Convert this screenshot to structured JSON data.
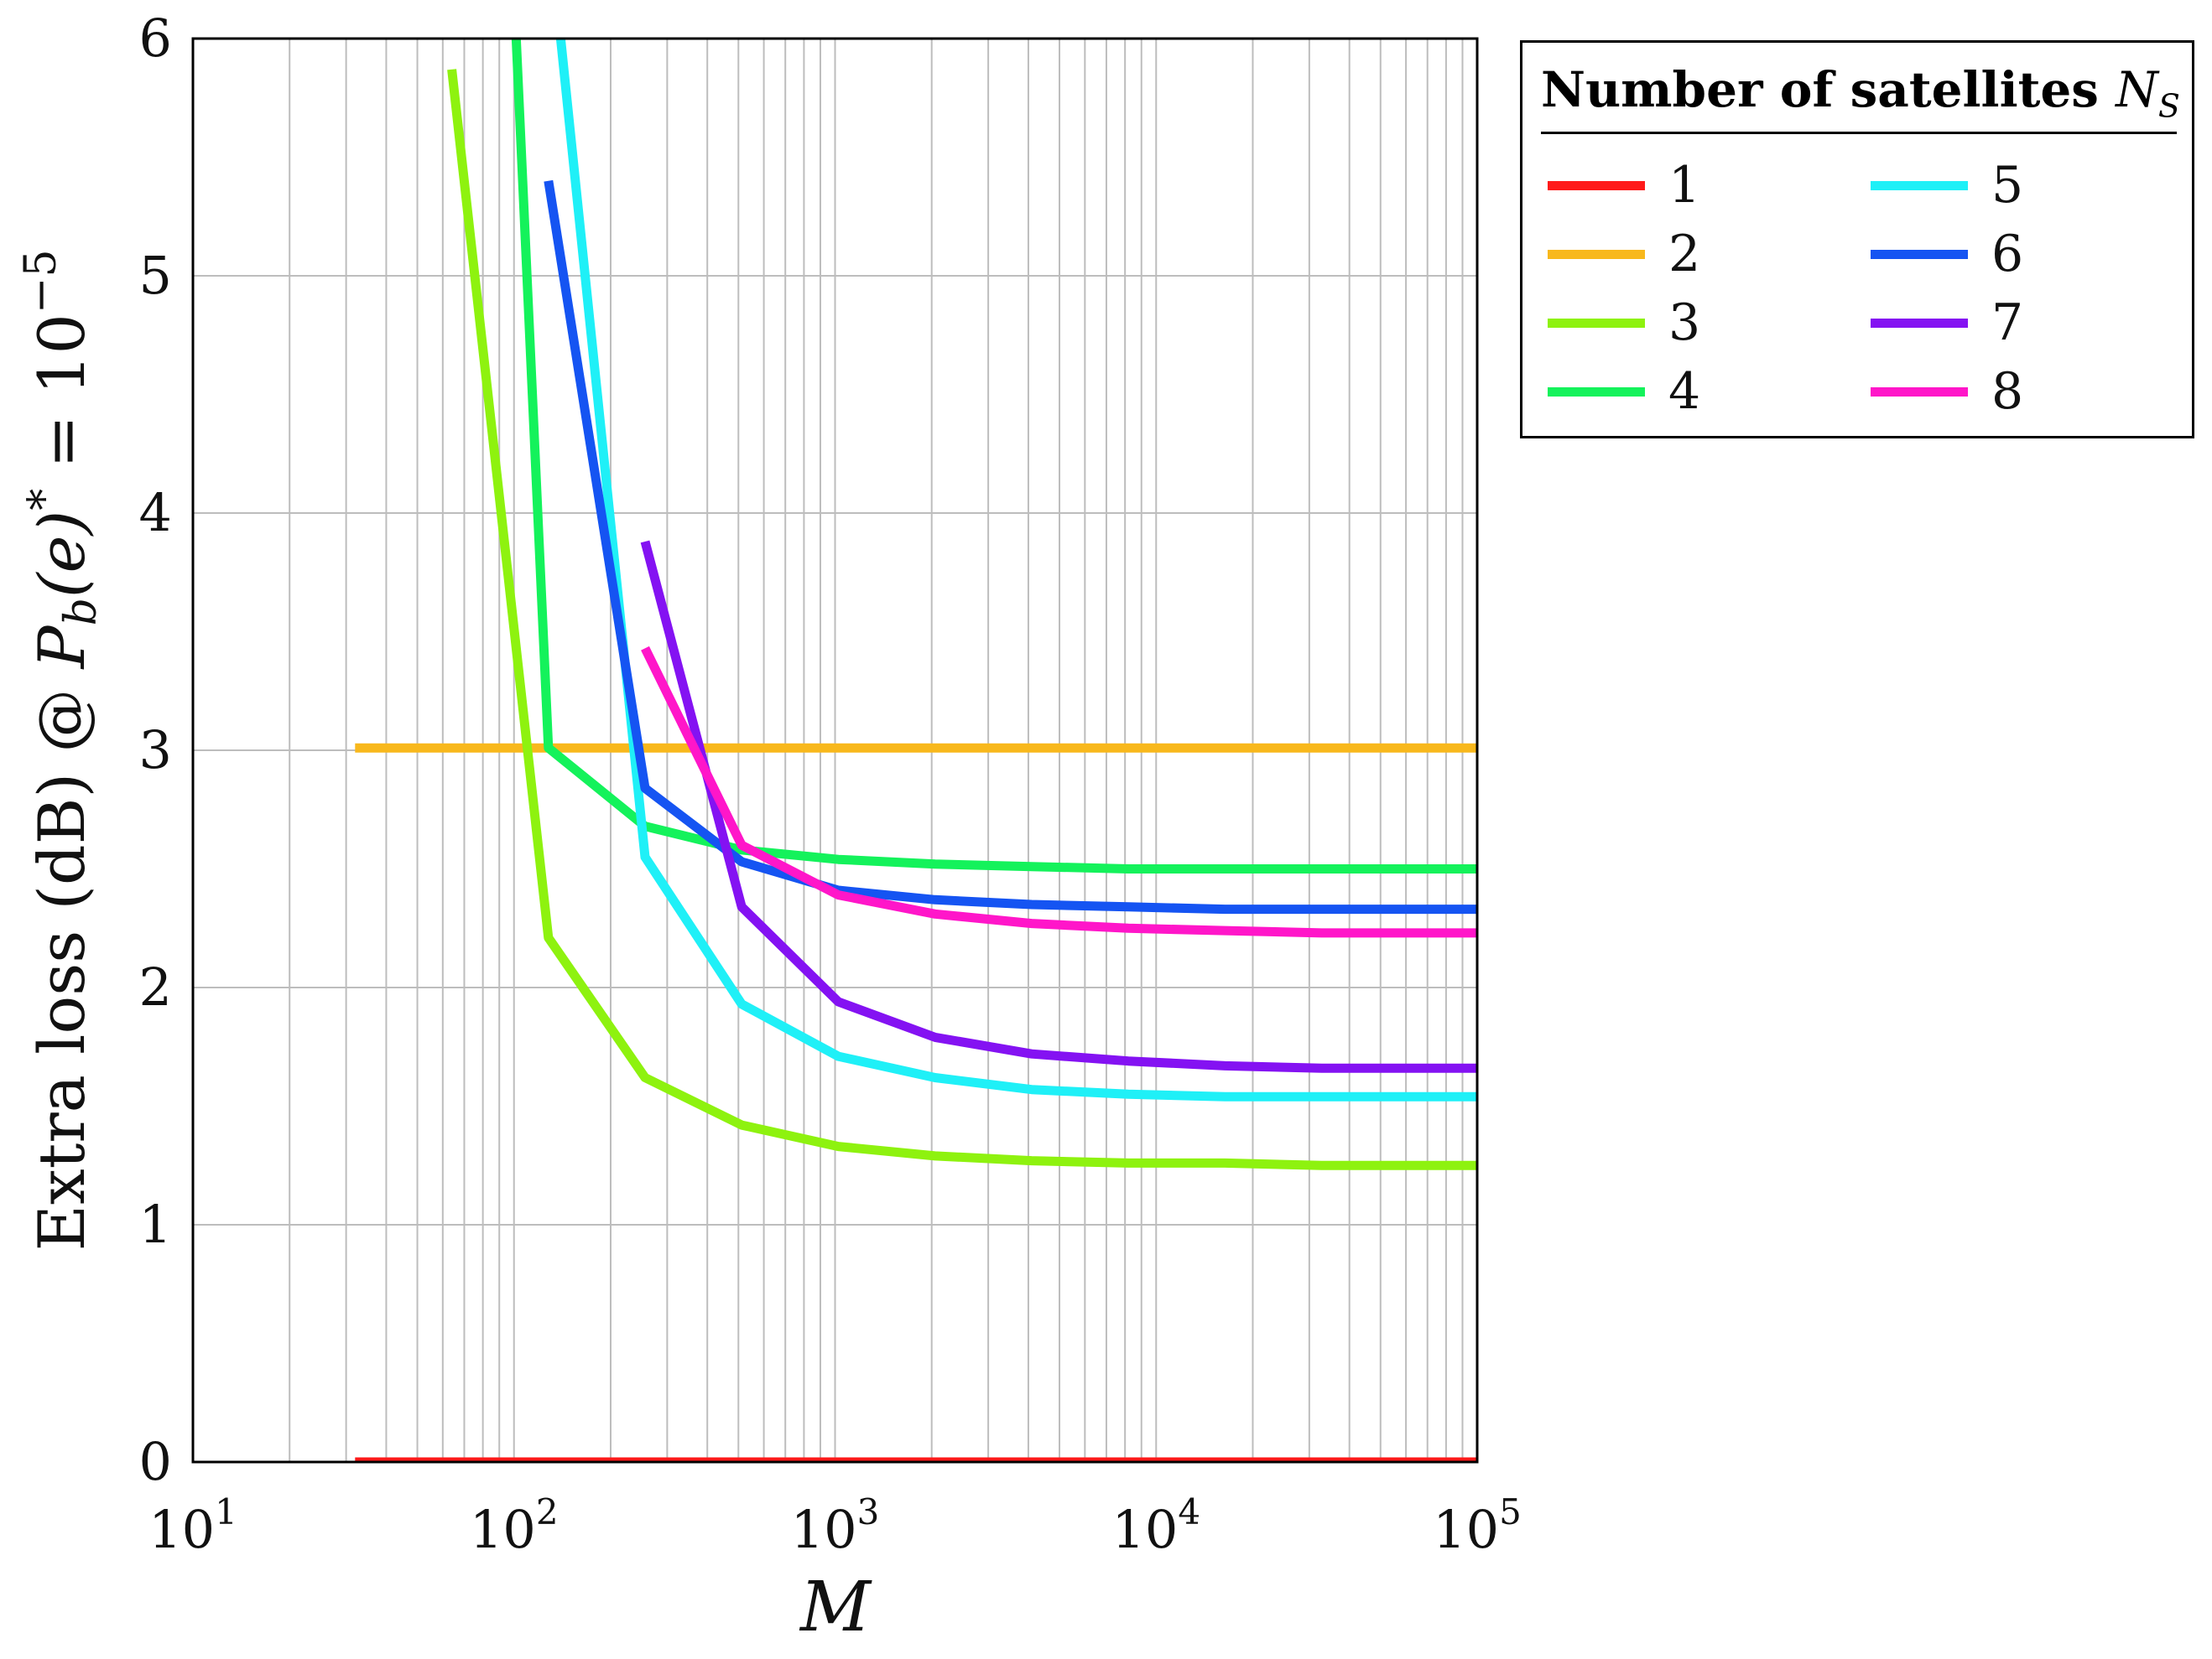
{
  "chart_data": {
    "type": "line",
    "title": "",
    "xlabel": "M",
    "ylabel": {
      "prefix": "Extra loss (dB) @ ",
      "P": "P",
      "P_sub": "b",
      "paren": "(e)",
      "sup": "*",
      "eq": " = 10",
      "exp": "−5"
    },
    "xscale": "log",
    "xlim": [
      10,
      100000
    ],
    "ylim": [
      0,
      6
    ],
    "grid": true,
    "x_ticks": [
      {
        "value": 10,
        "base": "10",
        "exp": "1"
      },
      {
        "value": 100,
        "base": "10",
        "exp": "2"
      },
      {
        "value": 1000,
        "base": "10",
        "exp": "3"
      },
      {
        "value": 10000,
        "base": "10",
        "exp": "4"
      },
      {
        "value": 100000,
        "base": "10",
        "exp": "5"
      }
    ],
    "y_ticks": [
      "0",
      "1",
      "2",
      "3",
      "4",
      "5",
      "6"
    ],
    "legend": {
      "title_bold": "Number of  satellites ",
      "title_symbol": "N",
      "title_symbol_sub": "S",
      "placement": "outside-right-top",
      "columns": 2
    },
    "series": [
      {
        "name": "1",
        "color": "#ff1a1a",
        "x": [
          32,
          100000
        ],
        "y": [
          0,
          0
        ]
      },
      {
        "name": "2",
        "color": "#f8b81c",
        "x": [
          32,
          100000
        ],
        "y": [
          3.01,
          3.01
        ]
      },
      {
        "name": "3",
        "color": "#8ef20f",
        "x": [
          64,
          128,
          256,
          512,
          1024,
          2048,
          4096,
          8192,
          16384,
          32768,
          65536,
          100000
        ],
        "y": [
          5.87,
          2.21,
          1.62,
          1.42,
          1.33,
          1.29,
          1.27,
          1.26,
          1.26,
          1.25,
          1.25,
          1.25
        ]
      },
      {
        "name": "4",
        "color": "#14f25b",
        "x": [
          100,
          128,
          256,
          512,
          1024,
          2048,
          4096,
          8192,
          16384,
          32768,
          65536,
          100000
        ],
        "y": [
          6.2,
          3.01,
          2.68,
          2.58,
          2.54,
          2.52,
          2.51,
          2.5,
          2.5,
          2.5,
          2.5,
          2.5
        ]
      },
      {
        "name": "5",
        "color": "#1ff0f7",
        "x": [
          128,
          256,
          512,
          1024,
          2048,
          4096,
          8192,
          16384,
          32768,
          65536,
          100000
        ],
        "y": [
          6.5,
          2.55,
          1.93,
          1.71,
          1.62,
          1.57,
          1.55,
          1.54,
          1.54,
          1.54,
          1.54
        ]
      },
      {
        "name": "6",
        "color": "#1554f2",
        "x": [
          128,
          256,
          512,
          1024,
          2048,
          4096,
          8192,
          16384,
          32768,
          65536,
          100000
        ],
        "y": [
          5.4,
          2.84,
          2.53,
          2.41,
          2.37,
          2.35,
          2.34,
          2.33,
          2.33,
          2.33,
          2.33
        ]
      },
      {
        "name": "7",
        "color": "#8412f2",
        "x": [
          256,
          512,
          1024,
          2048,
          4096,
          8192,
          16384,
          32768,
          65536,
          100000
        ],
        "y": [
          3.88,
          2.34,
          1.94,
          1.79,
          1.72,
          1.69,
          1.67,
          1.66,
          1.66,
          1.66
        ]
      },
      {
        "name": "8",
        "color": "#ff16c9",
        "x": [
          256,
          512,
          1024,
          2048,
          4096,
          8192,
          16384,
          32768,
          65536,
          100000
        ],
        "y": [
          3.43,
          2.6,
          2.39,
          2.31,
          2.27,
          2.25,
          2.24,
          2.23,
          2.23,
          2.23
        ]
      }
    ]
  }
}
